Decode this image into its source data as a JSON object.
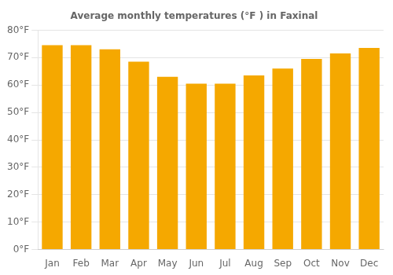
{
  "chart_data": {
    "type": "bar",
    "title": "Average monthly temperatures (°F ) in Faxinal",
    "categories": [
      "Jan",
      "Feb",
      "Mar",
      "Apr",
      "May",
      "Jun",
      "Jul",
      "Aug",
      "Sep",
      "Oct",
      "Nov",
      "Dec"
    ],
    "values": [
      74.5,
      74.5,
      73.0,
      68.5,
      63.0,
      60.5,
      60.5,
      63.5,
      66.0,
      69.5,
      71.5,
      73.5
    ],
    "color": "#F5A800",
    "ylim": [
      0,
      80
    ],
    "yticks": [
      {
        "value": 0,
        "label": "0°F"
      },
      {
        "value": 10,
        "label": "10°F"
      },
      {
        "value": 20,
        "label": "20°F"
      },
      {
        "value": 30,
        "label": "30°F"
      },
      {
        "value": 40,
        "label": "40°F"
      },
      {
        "value": 50,
        "label": "50°F"
      },
      {
        "value": 60,
        "label": "60°F"
      },
      {
        "value": 70,
        "label": "70°F"
      },
      {
        "value": 80,
        "label": "80°F"
      }
    ],
    "grid": true
  }
}
